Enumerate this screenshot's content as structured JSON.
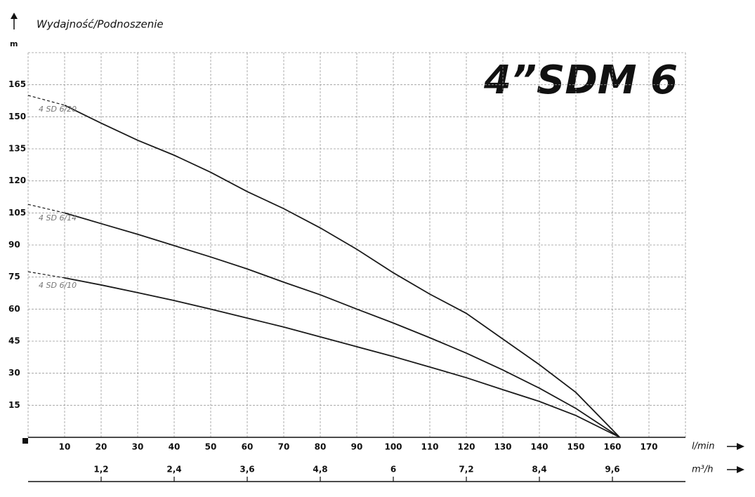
{
  "chart_data": {
    "type": "line",
    "title": "4”SDM 6",
    "y_label": "Wydajność/Podnoszenie",
    "y_unit": "m",
    "x_label": "l/min",
    "x2_label": "m³/h",
    "x": [
      0,
      10,
      20,
      30,
      40,
      50,
      60,
      70,
      80,
      90,
      100,
      110,
      120,
      130,
      140,
      150,
      162
    ],
    "series": [
      {
        "name": "4 SD 6/20",
        "color": "#1a1a1a",
        "values": [
          160,
          155.4,
          147,
          139,
          132,
          124,
          115,
          107,
          98,
          88,
          77,
          67,
          58,
          46,
          34,
          21,
          0
        ]
      },
      {
        "name": "4 SD 6/14",
        "color": "#1a1a1a",
        "values": [
          109,
          105,
          100,
          95,
          89.7,
          84.4,
          78.8,
          72.6,
          66.7,
          60,
          53.5,
          46.6,
          39.4,
          31.5,
          23,
          13.5,
          0
        ]
      },
      {
        "name": "4 SD 6/10",
        "color": "#1a1a1a",
        "values": [
          77.5,
          74.6,
          71.3,
          67.7,
          64,
          60,
          55.8,
          51.6,
          47,
          42.4,
          37.8,
          32.9,
          27.9,
          22.3,
          16.8,
          10.2,
          0
        ]
      }
    ],
    "xlim": [
      0,
      180
    ],
    "xticks": [
      10,
      20,
      30,
      40,
      50,
      60,
      70,
      80,
      90,
      100,
      110,
      120,
      130,
      140,
      150,
      160,
      170
    ],
    "x2lim": [
      0,
      10.8
    ],
    "x2ticks": [
      {
        "value": 1.2,
        "label": "1,2"
      },
      {
        "value": 2.4,
        "label": "2,4"
      },
      {
        "value": 3.6,
        "label": "3,6"
      },
      {
        "value": 4.8,
        "label": "4,8"
      },
      6,
      {
        "value": 7.2,
        "label": "7,2"
      },
      {
        "value": 8.4,
        "label": "8,4"
      },
      {
        "value": 9.6,
        "label": "9,6"
      }
    ],
    "ylim": [
      0,
      180
    ],
    "yticks": [
      15,
      30,
      45,
      60,
      75,
      90,
      105,
      120,
      135,
      150,
      165
    ],
    "grid": true
  }
}
